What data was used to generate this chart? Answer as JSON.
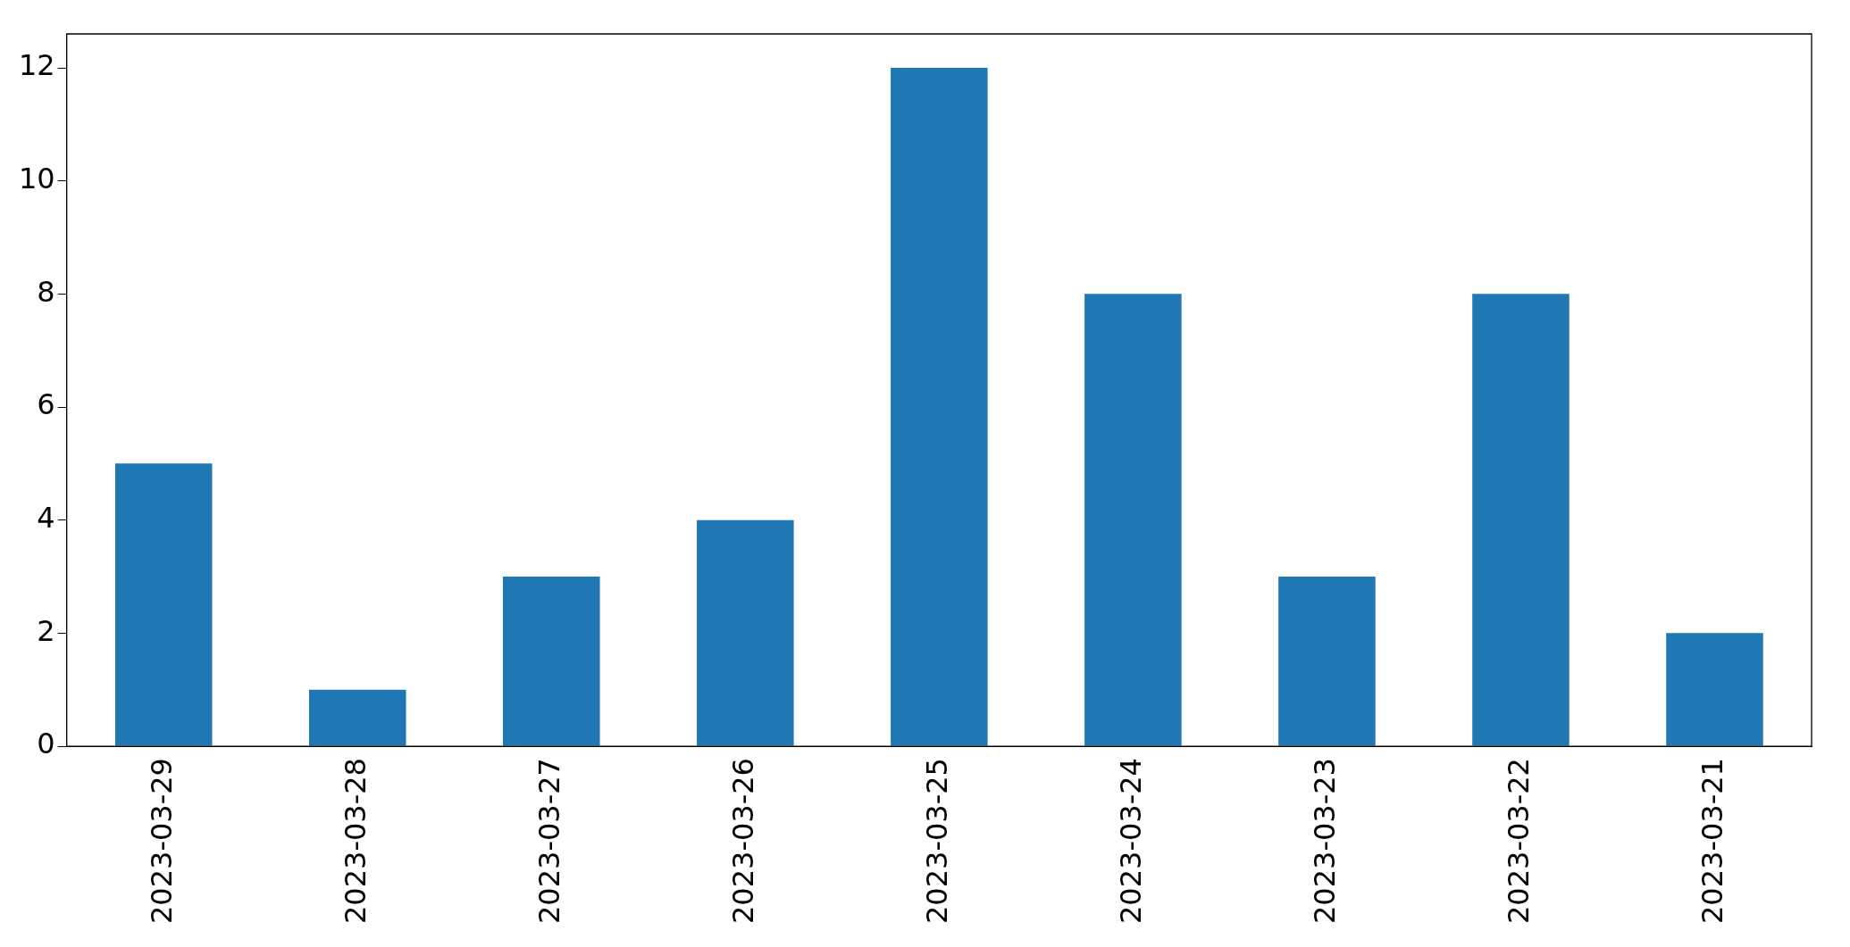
{
  "chart_data": {
    "type": "bar",
    "categories": [
      "2023-03-29",
      "2023-03-28",
      "2023-03-27",
      "2023-03-26",
      "2023-03-25",
      "2023-03-24",
      "2023-03-23",
      "2023-03-22",
      "2023-03-21"
    ],
    "values": [
      5,
      1,
      3,
      4,
      12,
      8,
      3,
      8,
      2
    ],
    "color": "#1f77b4",
    "ylim": [
      0,
      12.6
    ],
    "yticks": [
      0,
      2,
      4,
      6,
      8,
      10,
      12
    ],
    "grid": false,
    "legend": false
  }
}
